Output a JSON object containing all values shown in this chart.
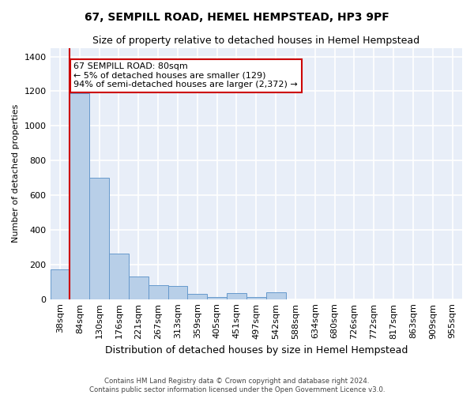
{
  "title": "67, SEMPILL ROAD, HEMEL HEMPSTEAD, HP3 9PF",
  "subtitle": "Size of property relative to detached houses in Hemel Hempstead",
  "xlabel": "Distribution of detached houses by size in Hemel Hempstead",
  "ylabel": "Number of detached properties",
  "footer_line1": "Contains HM Land Registry data © Crown copyright and database right 2024.",
  "footer_line2": "Contains public sector information licensed under the Open Government Licence v3.0.",
  "bin_labels": [
    "38sqm",
    "84sqm",
    "130sqm",
    "176sqm",
    "221sqm",
    "267sqm",
    "313sqm",
    "359sqm",
    "405sqm",
    "451sqm",
    "497sqm",
    "542sqm",
    "588sqm",
    "634sqm",
    "680sqm",
    "726sqm",
    "772sqm",
    "817sqm",
    "863sqm",
    "909sqm",
    "955sqm"
  ],
  "bar_values": [
    170,
    1190,
    700,
    265,
    130,
    80,
    75,
    30,
    10,
    35,
    10,
    40,
    0,
    0,
    0,
    0,
    0,
    0,
    0,
    0,
    0
  ],
  "bar_color": "#b8cfe8",
  "bar_edge_color": "#6699cc",
  "background_color": "#e8eef8",
  "grid_color": "#ffffff",
  "annotation_text": "67 SEMPILL ROAD: 80sqm\n← 5% of detached houses are smaller (129)\n94% of semi-detached houses are larger (2,372) →",
  "annotation_box_color": "#ffffff",
  "annotation_box_edge_color": "#cc0000",
  "property_line_color": "#cc0000",
  "ylim": [
    0,
    1450
  ],
  "yticks": [
    0,
    200,
    400,
    600,
    800,
    1000,
    1200,
    1400
  ],
  "title_fontsize": 10,
  "subtitle_fontsize": 9,
  "ylabel_fontsize": 8,
  "xlabel_fontsize": 9,
  "tick_fontsize": 8,
  "annotation_fontsize": 8
}
